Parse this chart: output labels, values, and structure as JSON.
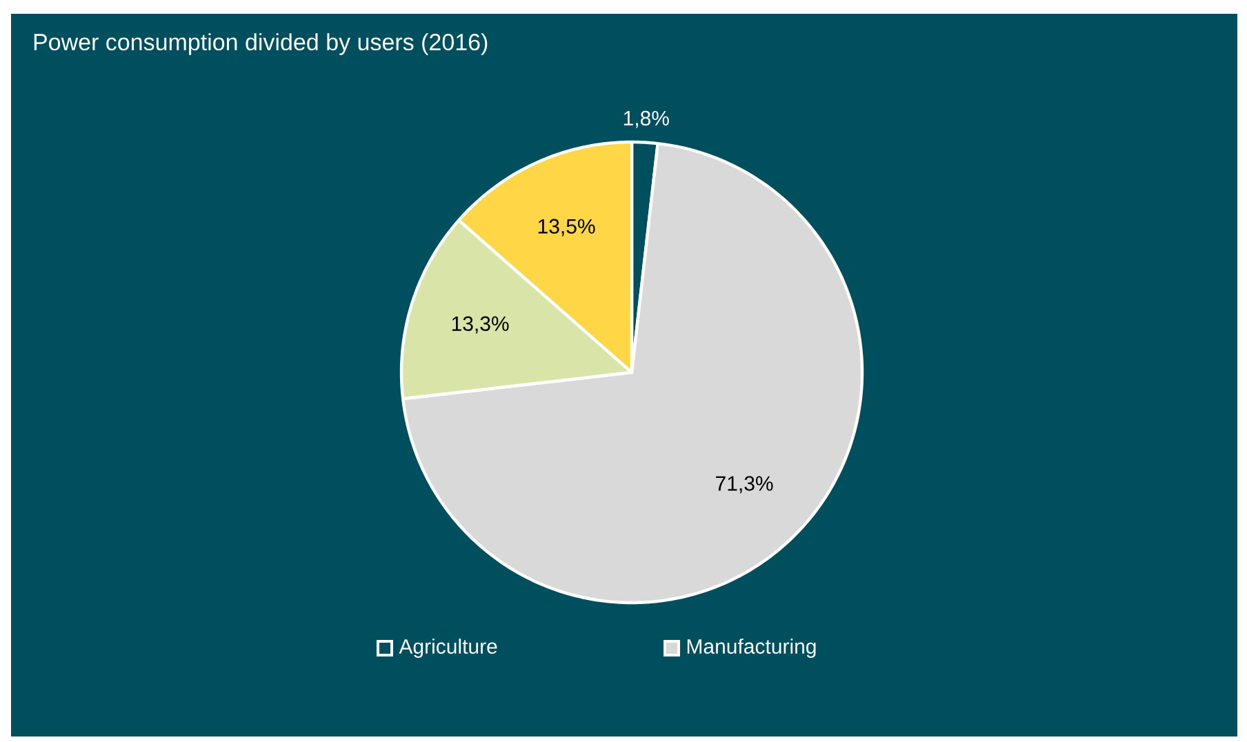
{
  "chart_data": {
    "type": "pie",
    "title": "Power consumption divided by users (2016)",
    "categories": [
      "Agriculture",
      "Manufacturing",
      null,
      null
    ],
    "values": [
      1.8,
      71.3,
      13.3,
      13.5
    ],
    "colors": [
      "#004f5f",
      "#d9d9d9",
      "#d9e4a9",
      "#ffd646"
    ],
    "value_labels": [
      "1,8%",
      "71,3%",
      "13,3%",
      "13,5%"
    ],
    "legend": "bottom"
  }
}
